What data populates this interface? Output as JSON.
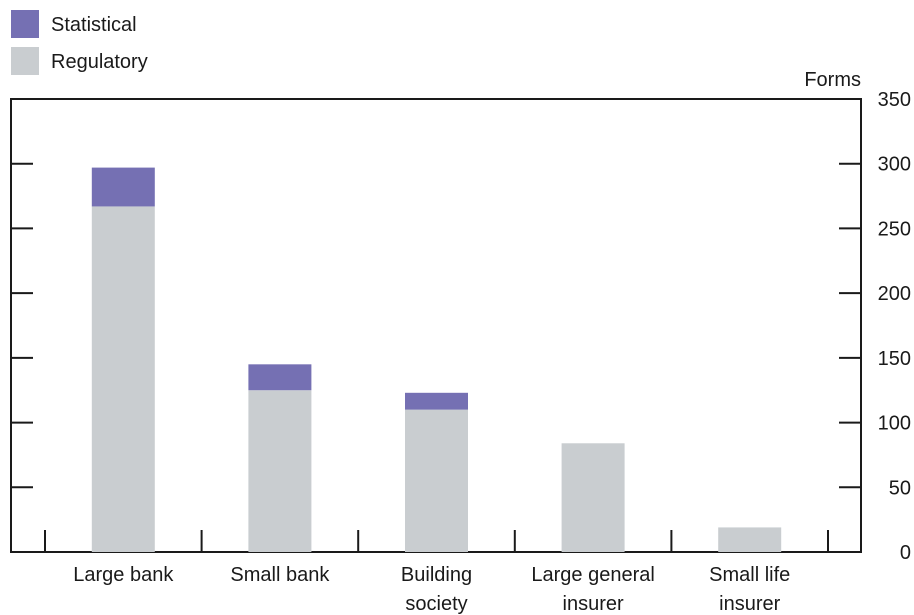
{
  "chart_data": {
    "type": "bar",
    "stacked": true,
    "categories": [
      [
        "Large bank"
      ],
      [
        "Small bank"
      ],
      [
        "Building",
        "society"
      ],
      [
        "Large general",
        "insurer"
      ],
      [
        "Small life",
        "insurer"
      ]
    ],
    "series": [
      {
        "name": "Regulatory",
        "values": [
          267,
          125,
          110,
          84,
          19
        ],
        "color": "#c9cdd0"
      },
      {
        "name": "Statistical",
        "values": [
          30,
          20,
          13,
          0,
          0
        ],
        "color": "#7570b3"
      }
    ],
    "legend": [
      {
        "name": "Statistical",
        "color": "#7570b3"
      },
      {
        "name": "Regulatory",
        "color": "#c9cdd0"
      }
    ],
    "legend_position": "top-left",
    "y_unit_label": "Forms",
    "y_axis_side": "right",
    "ylim": [
      0,
      350
    ],
    "yticks": [
      0,
      50,
      100,
      150,
      200,
      250,
      300,
      350
    ],
    "grid": false
  }
}
